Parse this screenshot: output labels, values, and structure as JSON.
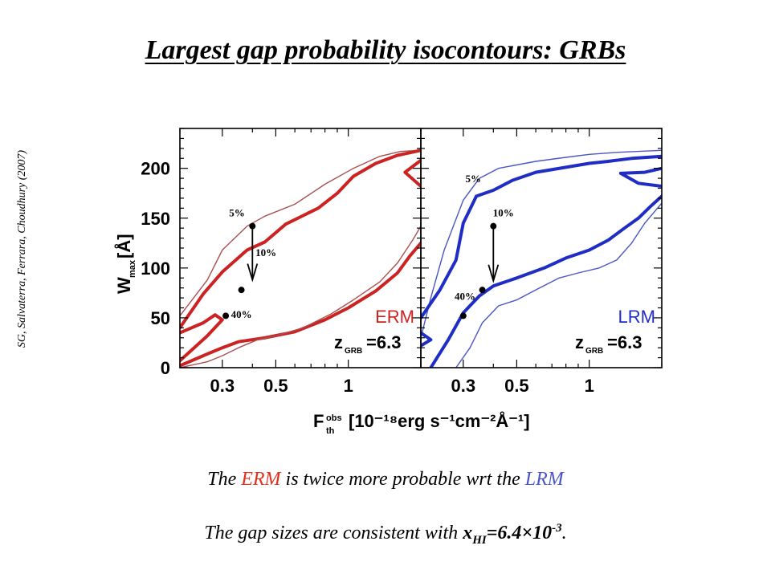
{
  "page": {
    "title": "Largest gap probability isocontours: GRBs",
    "credit": "SG, Salvaterra, Ferrara, Choudhury (2007)",
    "summary": {
      "pre": "The ",
      "erm": "ERM",
      "mid": " is twice more probable wrt the ",
      "lrm": "LRM"
    },
    "consistency": {
      "pre": "The gap sizes are consistent with ",
      "x": "x",
      "x_sub": "HI",
      "eq": "=6.4",
      "times": "×",
      "ten": "10",
      "exp": "-3",
      "end": "."
    }
  },
  "chart_data": {
    "type": "line",
    "xlabel": "F",
    "xlabel_sup": "obs",
    "xlabel_sub": "th",
    "xlabel_units": "[10⁻¹⁸erg s⁻¹cm⁻²Å⁻¹]",
    "ylabel": "W",
    "ylabel_sub": "max",
    "ylabel_units": "[Å]",
    "x_scale": "log",
    "xlim": [
      0.2,
      2.0
    ],
    "ylim": [
      0,
      240
    ],
    "x_ticks": [
      0.3,
      0.5,
      1
    ],
    "x_tick_labels": [
      "0.3",
      "0.5",
      "1"
    ],
    "y_ticks": [
      0,
      50,
      100,
      150,
      200
    ],
    "y_tick_labels": [
      "0",
      "50",
      "100",
      "150",
      "200"
    ],
    "panels": [
      {
        "name": "ERM",
        "label": "ERM",
        "z_label": "z",
        "z_sub": "GRB",
        "z_value": "=6.3",
        "color": "#cc2222",
        "thin_color": "#a85050",
        "arrow": {
          "x": 0.4,
          "y_from": 142,
          "y_to": 93
        },
        "points": [
          {
            "x": 0.4,
            "y": 142
          },
          {
            "x": 0.36,
            "y": 78
          },
          {
            "x": 0.31,
            "y": 52
          }
        ],
        "annotations": [
          {
            "text": "5%",
            "x": 0.345,
            "y": 152
          },
          {
            "text": "10%",
            "x": 0.455,
            "y": 112
          },
          {
            "text": "40%",
            "x": 0.36,
            "y": 50
          }
        ],
        "contours": [
          {
            "level": "thin",
            "points": [
              [
                0.2,
                52
              ],
              [
                0.26,
                88
              ],
              [
                0.3,
                118
              ],
              [
                0.38,
                142
              ],
              [
                0.45,
                152
              ],
              [
                0.6,
                164
              ],
              [
                0.8,
                184
              ],
              [
                1.05,
                200
              ],
              [
                1.35,
                212
              ],
              [
                1.65,
                217
              ],
              [
                2.0,
                218
              ]
            ]
          },
          {
            "level": "thick",
            "points": [
              [
                0.2,
                40
              ],
              [
                0.25,
                74
              ],
              [
                0.3,
                96
              ],
              [
                0.38,
                118
              ],
              [
                0.45,
                126
              ],
              [
                0.55,
                144
              ],
              [
                0.75,
                160
              ],
              [
                0.9,
                175
              ],
              [
                1.05,
                192
              ],
              [
                1.3,
                205
              ],
              [
                1.6,
                213
              ],
              [
                2.0,
                218
              ]
            ]
          },
          {
            "level": "thick",
            "points": [
              [
                0.2,
                2
              ],
              [
                0.25,
                12
              ],
              [
                0.3,
                20
              ],
              [
                0.35,
                26
              ],
              [
                0.45,
                30
              ],
              [
                0.6,
                36
              ],
              [
                0.8,
                48
              ],
              [
                1.0,
                60
              ],
              [
                1.3,
                77
              ],
              [
                1.6,
                95
              ],
              [
                1.8,
                112
              ],
              [
                2.0,
                125
              ]
            ]
          },
          {
            "level": "thin",
            "points": [
              [
                0.2,
                0
              ],
              [
                0.26,
                6
              ],
              [
                0.3,
                12
              ],
              [
                0.35,
                20
              ],
              [
                0.42,
                28
              ],
              [
                0.5,
                32
              ],
              [
                0.65,
                40
              ],
              [
                0.85,
                54
              ],
              [
                1.05,
                68
              ],
              [
                1.35,
                86
              ],
              [
                1.6,
                105
              ],
              [
                1.85,
                128
              ],
              [
                2.0,
                142
              ]
            ]
          },
          {
            "level": "thick",
            "points": [
              [
                0.2,
                35
              ],
              [
                0.25,
                45
              ],
              [
                0.28,
                53
              ],
              [
                0.3,
                48
              ],
              [
                0.26,
                32
              ],
              [
                0.22,
                16
              ],
              [
                0.2,
                7
              ]
            ]
          },
          {
            "level": "thick",
            "points": [
              [
                2.0,
                208
              ],
              [
                1.72,
                196
              ],
              [
                2.0,
                182
              ]
            ]
          }
        ]
      },
      {
        "name": "LRM",
        "label": "LRM",
        "z_label": "z",
        "z_sub": "GRB",
        "z_value": "=6.3",
        "color": "#1f2dc4",
        "thin_color": "#4a55c8",
        "arrow": {
          "x": 0.4,
          "y_from": 142,
          "y_to": 92
        },
        "points": [
          {
            "x": 0.4,
            "y": 142
          },
          {
            "x": 0.36,
            "y": 78
          },
          {
            "x": 0.3,
            "y": 52
          }
        ],
        "annotations": [
          {
            "text": "5%",
            "x": 0.33,
            "y": 186
          },
          {
            "text": "10%",
            "x": 0.44,
            "y": 152
          },
          {
            "text": "40%",
            "x": 0.305,
            "y": 68
          }
        ],
        "contours": [
          {
            "level": "thin",
            "points": [
              [
                0.2,
                30
              ],
              [
                0.22,
                70
              ],
              [
                0.25,
                118
              ],
              [
                0.3,
                168
              ],
              [
                0.35,
                190
              ],
              [
                0.42,
                200
              ],
              [
                0.6,
                207
              ],
              [
                0.8,
                211
              ],
              [
                1.0,
                214
              ],
              [
                1.3,
                216
              ],
              [
                1.6,
                217
              ],
              [
                2.0,
                218
              ]
            ]
          },
          {
            "level": "thick",
            "points": [
              [
                0.2,
                50
              ],
              [
                0.24,
                78
              ],
              [
                0.28,
                108
              ],
              [
                0.3,
                145
              ],
              [
                0.34,
                172
              ],
              [
                0.4,
                178
              ],
              [
                0.48,
                188
              ],
              [
                0.6,
                196
              ],
              [
                0.8,
                201
              ],
              [
                1.0,
                205
              ],
              [
                1.2,
                207
              ],
              [
                1.5,
                210
              ],
              [
                2.0,
                212
              ]
            ]
          },
          {
            "level": "thick",
            "points": [
              [
                0.22,
                0
              ],
              [
                0.26,
                28
              ],
              [
                0.3,
                55
              ],
              [
                0.35,
                72
              ],
              [
                0.4,
                82
              ],
              [
                0.5,
                90
              ],
              [
                0.65,
                100
              ],
              [
                0.8,
                110
              ],
              [
                1.0,
                118
              ],
              [
                1.2,
                128
              ],
              [
                1.4,
                140
              ],
              [
                1.6,
                150
              ],
              [
                1.8,
                162
              ],
              [
                2.0,
                172
              ]
            ]
          },
          {
            "level": "thin",
            "points": [
              [
                0.28,
                0
              ],
              [
                0.32,
                20
              ],
              [
                0.36,
                45
              ],
              [
                0.42,
                62
              ],
              [
                0.5,
                68
              ],
              [
                0.6,
                78
              ],
              [
                0.75,
                90
              ],
              [
                0.9,
                95
              ],
              [
                1.1,
                100
              ],
              [
                1.3,
                108
              ],
              [
                1.5,
                125
              ],
              [
                1.7,
                145
              ],
              [
                2.0,
                165
              ]
            ]
          },
          {
            "level": "thick",
            "points": [
              [
                2.0,
                200
              ],
              [
                1.7,
                196
              ],
              [
                1.35,
                195
              ],
              [
                1.6,
                185
              ],
              [
                2.0,
                182
              ]
            ]
          },
          {
            "level": "thick",
            "points": [
              [
                0.2,
                35
              ],
              [
                0.22,
                28
              ],
              [
                0.2,
                22
              ]
            ]
          }
        ]
      }
    ]
  }
}
